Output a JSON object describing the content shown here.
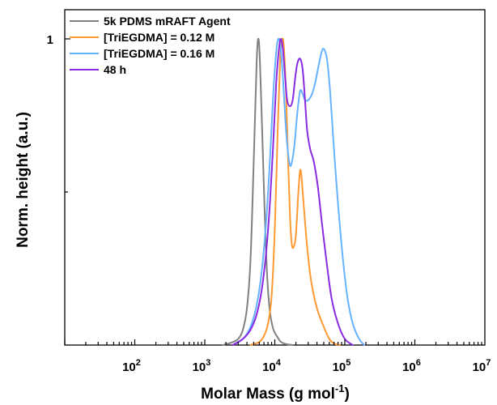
{
  "chart_data": {
    "type": "line",
    "xlabel": "Molar Mass (g mol",
    "xlabel_sup": "-1",
    "xlabel_tail": ")",
    "ylabel": "Norm. height (a.u.)",
    "x_scale": "log",
    "xlim": [
      10,
      10000000
    ],
    "ylim": [
      0,
      1.0
    ],
    "x_tick_labels": [
      {
        "base": "10",
        "exp": "2",
        "value": 100
      },
      {
        "base": "10",
        "exp": "3",
        "value": 1000
      },
      {
        "base": "10",
        "exp": "4",
        "value": 10000
      },
      {
        "base": "10",
        "exp": "5",
        "value": 100000
      },
      {
        "base": "10",
        "exp": "6",
        "value": 1000000
      },
      {
        "base": "10",
        "exp": "7",
        "value": 10000000
      }
    ],
    "y_tick_labels": [
      {
        "label": "1",
        "value": 1.0
      }
    ],
    "y_minor_ticks": [
      0.5
    ],
    "legend_position": "top-left",
    "grid": false,
    "series": [
      {
        "name": "5k PDMS mRAFT Agent",
        "color": "#808080",
        "x": [
          1800,
          2400,
          3000,
          3500,
          4000,
          4500,
          5000,
          5500,
          5800,
          6100,
          6600,
          7200,
          7800,
          8500,
          9300,
          10000,
          11000,
          12000,
          14000,
          18000
        ],
        "y": [
          0.0,
          0.008,
          0.02,
          0.05,
          0.12,
          0.28,
          0.6,
          0.92,
          1.0,
          0.94,
          0.7,
          0.42,
          0.22,
          0.11,
          0.06,
          0.04,
          0.025,
          0.012,
          0.004,
          0.0
        ]
      },
      {
        "name": "[TriEGDMA] = 0.12 M",
        "color": "#FF9933",
        "x": [
          4500,
          6000,
          7000,
          8000,
          9000,
          10000,
          11000,
          12000,
          12800,
          13500,
          14500,
          15500,
          16500,
          17500,
          18500,
          20000,
          22000,
          23500,
          26000,
          29000,
          33000,
          40000,
          50000,
          60000,
          70000,
          85000
        ],
        "y": [
          0.0,
          0.01,
          0.03,
          0.07,
          0.16,
          0.38,
          0.7,
          0.95,
          1.0,
          0.97,
          0.82,
          0.6,
          0.42,
          0.33,
          0.32,
          0.36,
          0.52,
          0.57,
          0.45,
          0.32,
          0.21,
          0.12,
          0.06,
          0.02,
          0.005,
          0.0
        ]
      },
      {
        "name": "[TriEGDMA] = 0.16 M",
        "color": "#66B2FF",
        "x": [
          2500,
          3500,
          4500,
          5500,
          6500,
          7500,
          8500,
          9500,
          10500,
          11200,
          12000,
          13000,
          14500,
          16000,
          17200,
          19000,
          21000,
          23000,
          25000,
          27000,
          30000,
          34000,
          38000,
          42000,
          47000,
          51000,
          56000,
          62000,
          70000,
          80000,
          95000,
          110000,
          130000,
          160000,
          190000
        ],
        "y": [
          0.0,
          0.02,
          0.06,
          0.13,
          0.24,
          0.4,
          0.6,
          0.82,
          0.96,
          1.0,
          0.98,
          0.88,
          0.7,
          0.6,
          0.59,
          0.65,
          0.76,
          0.83,
          0.82,
          0.8,
          0.8,
          0.82,
          0.86,
          0.91,
          0.96,
          0.965,
          0.93,
          0.82,
          0.64,
          0.46,
          0.27,
          0.15,
          0.07,
          0.02,
          0.0
        ]
      },
      {
        "name": "48 h",
        "color": "#8A2BE2",
        "x": [
          2500,
          3500,
          4500,
          5500,
          6500,
          7500,
          8500,
          9500,
          10500,
          11500,
          12200,
          13000,
          14000,
          15000,
          16500,
          18000,
          19500,
          21000,
          23000,
          25000,
          27000,
          29000,
          32000,
          36000,
          41000,
          47000,
          55000,
          65000,
          80000,
          100000,
          130000
        ],
        "y": [
          0.0,
          0.02,
          0.05,
          0.1,
          0.18,
          0.3,
          0.46,
          0.66,
          0.86,
          0.97,
          1.0,
          0.97,
          0.88,
          0.8,
          0.78,
          0.8,
          0.87,
          0.92,
          0.935,
          0.9,
          0.8,
          0.7,
          0.64,
          0.6,
          0.52,
          0.4,
          0.27,
          0.15,
          0.07,
          0.02,
          0.0
        ]
      }
    ]
  }
}
